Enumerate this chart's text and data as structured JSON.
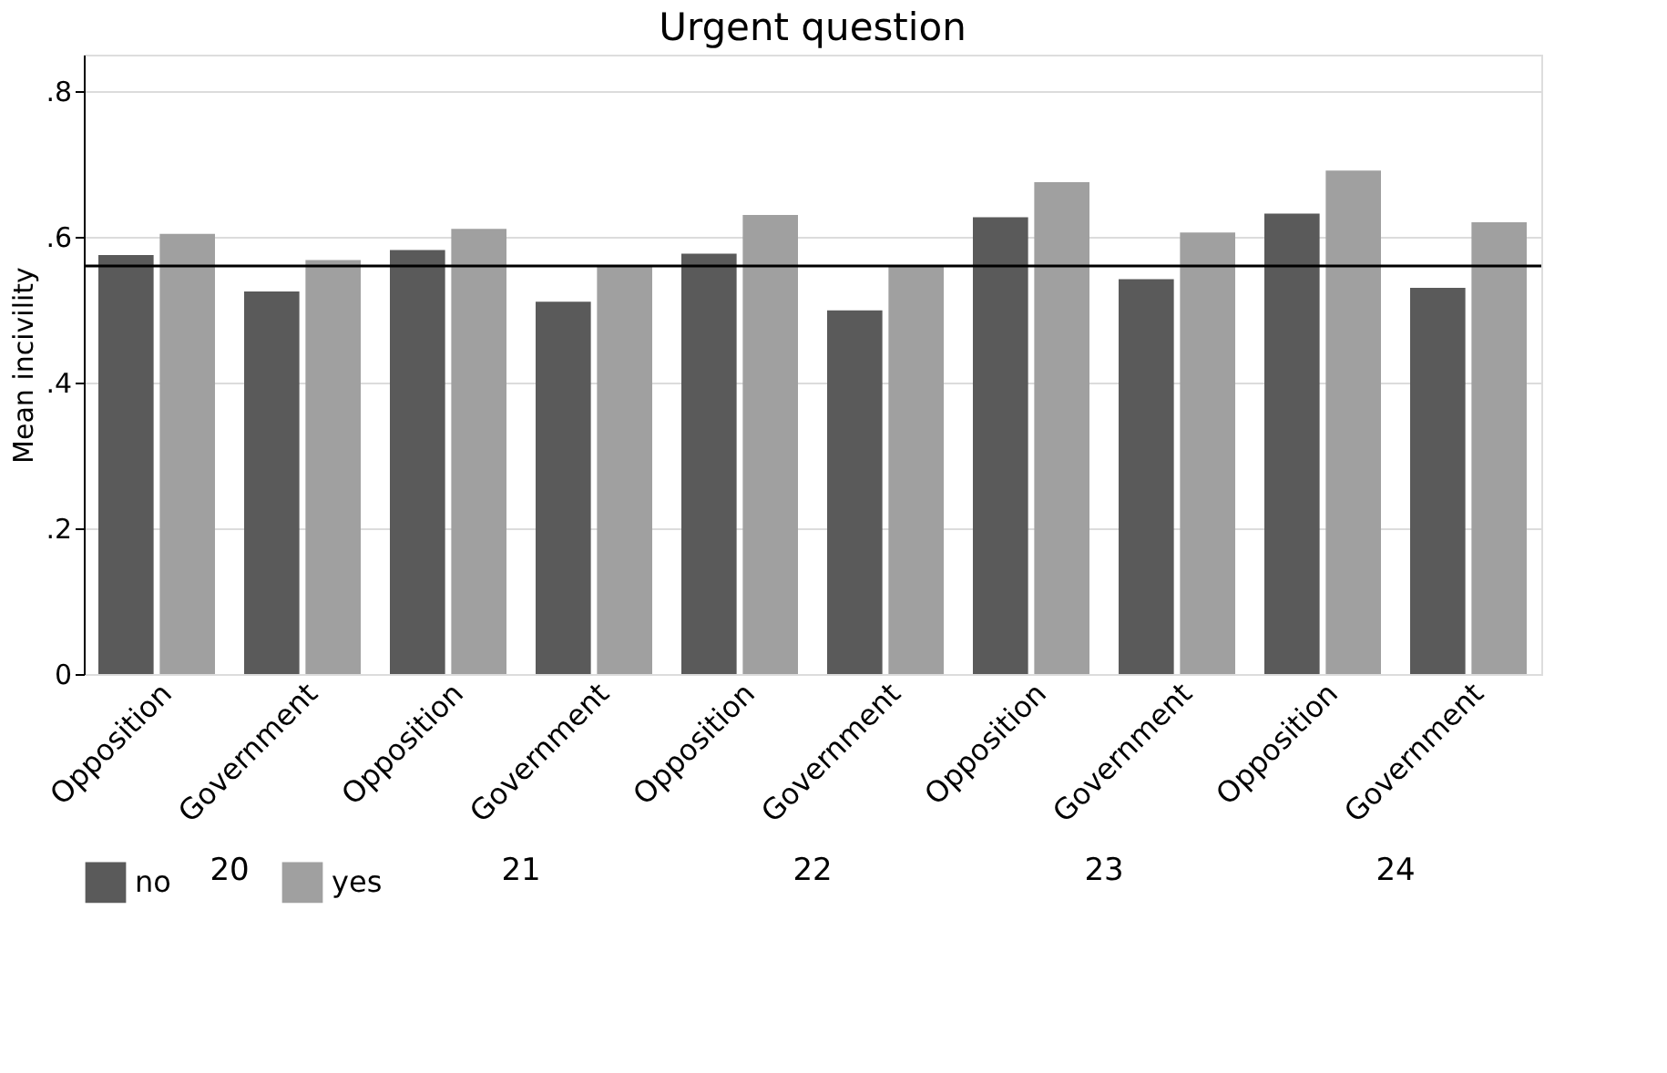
{
  "chart_data": {
    "type": "bar",
    "title": "Urgent question",
    "ylabel": "Mean incivility",
    "categories": [
      "Opposition",
      "Government",
      "Opposition",
      "Government",
      "Opposition",
      "Government",
      "Opposition",
      "Government",
      "Opposition",
      "Government"
    ],
    "annotations": [
      "20",
      "21",
      "22",
      "23",
      "24"
    ],
    "series": [
      {
        "name": "no",
        "color": "#5a5a5a",
        "values": [
          0.575,
          0.525,
          0.582,
          0.511,
          0.577,
          0.499,
          0.627,
          0.542,
          0.632,
          0.53
        ]
      },
      {
        "name": "yes",
        "color": "#a0a0a0",
        "values": [
          0.604,
          0.568,
          0.611,
          0.561,
          0.63,
          0.561,
          0.675,
          0.606,
          0.691,
          0.62
        ]
      }
    ],
    "ylim": [
      0,
      0.85
    ],
    "yticks": [
      0,
      {
        "value": 0.2,
        "label": ".2"
      },
      {
        "value": 0.4,
        "label": ".4"
      },
      {
        "value": 0.6,
        "label": ".6"
      },
      {
        "value": 0.8,
        "label": ".8"
      }
    ],
    "ref_lines": [
      {
        "axis": "y",
        "value": 0.56,
        "color": "#000000"
      }
    ],
    "grid": "y",
    "legend": "bottom"
  }
}
